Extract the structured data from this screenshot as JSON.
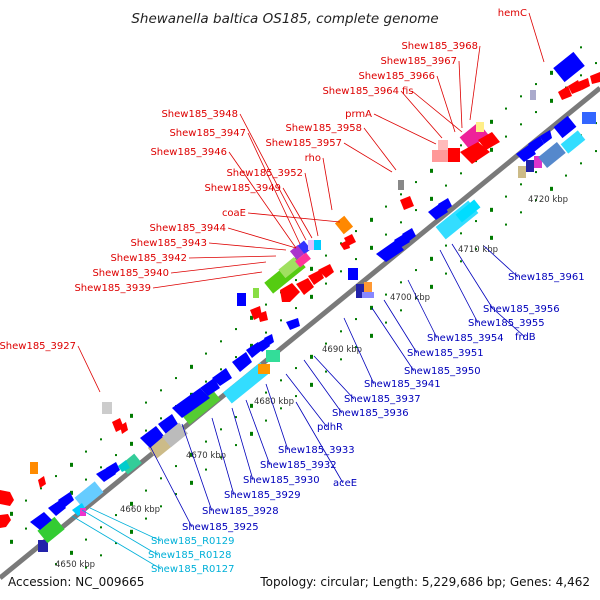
{
  "title": "Shewanella baltica OS185, complete genome",
  "footer": {
    "accession": "Accession: NC_009665",
    "summary": "Topology: circular; Length: 5,229,686 bp; Genes: 4,462"
  },
  "colors": {
    "backbone": "#8a8a8a",
    "forward_label": "#dd0000",
    "reverse_label": "#0000bb",
    "rna_label": "#00b0d8",
    "forward_gene": "#ff0000",
    "reverse_gene": "#0000ff",
    "tick": "#007a00"
  },
  "ticks": [
    "4650 kbp",
    "4660 kbp",
    "4670 kbp",
    "4680 kbp",
    "4690 kbp",
    "4700 kbp",
    "4710 kbp",
    "4720 kbp"
  ],
  "forward_labels": [
    "hemC",
    "Shew185_3968",
    "Shew185_3967",
    "Shew185_3966",
    "Shew185_3964",
    "fis",
    "prmA",
    "Shew185_3958",
    "Shew185_3957",
    "rho",
    "Shew185_3948",
    "Shew185_3947",
    "Shew185_3946",
    "Shew185_3952",
    "Shew185_3949",
    "coaE",
    "Shew185_3944",
    "Shew185_3943",
    "Shew185_3942",
    "Shew185_3940",
    "Shew185_3939",
    "Shew185_3927"
  ],
  "reverse_labels": [
    "Shew185_3961",
    "Shew185_3956",
    "Shew185_3955",
    "frdB",
    "Shew185_3954",
    "Shew185_3951",
    "Shew185_3950",
    "Shew185_3941",
    "Shew185_3937",
    "Shew185_3936",
    "pdhR",
    "Shew185_3933",
    "Shew185_3932",
    "Shew185_3930",
    "aceE",
    "Shew185_3929",
    "Shew185_3928",
    "Shew185_3925"
  ],
  "rna_labels": [
    "Shew185_R0129",
    "Shew185_R0128",
    "Shew185_R0127"
  ]
}
